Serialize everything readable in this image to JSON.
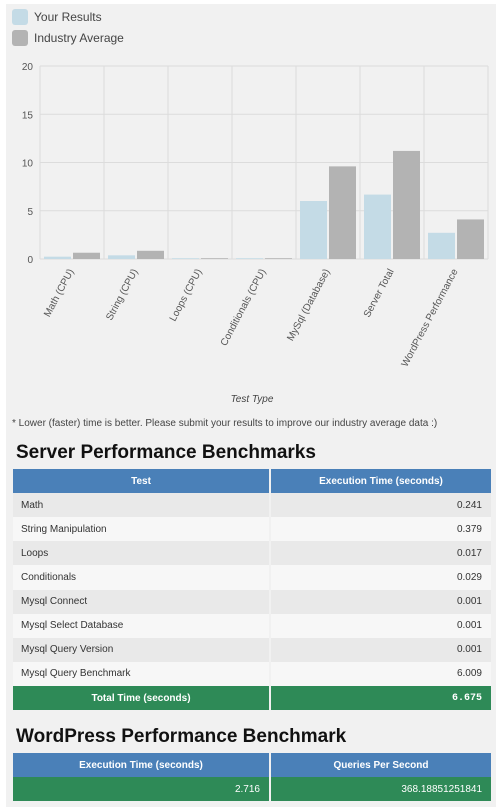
{
  "legend": [
    {
      "label": "Your Results",
      "color": "#c4dbe6"
    },
    {
      "label": "Industry Average",
      "color": "#b3b3b3"
    }
  ],
  "chart_data": {
    "type": "bar",
    "categories": [
      "Math (CPU)",
      "String (CPU)",
      "Loops (CPU)",
      "Conditionals (CPU)",
      "MySql (Database)",
      "Server Total",
      "WordPress Performance"
    ],
    "series": [
      {
        "name": "Your Results",
        "color": "#c4dbe6",
        "values": [
          0.241,
          0.379,
          0.017,
          0.029,
          6.009,
          6.675,
          2.716
        ]
      },
      {
        "name": "Industry Average",
        "color": "#b3b3b3",
        "values": [
          0.65,
          0.85,
          0.04,
          0.06,
          9.6,
          11.2,
          4.1
        ]
      }
    ],
    "yticks": [
      0,
      5,
      10,
      15,
      20
    ],
    "ylim": [
      0,
      20
    ],
    "xlabel": "Test Type",
    "grid": true,
    "legend_position": "top-left"
  },
  "note": "* Lower (faster) time is better. Please submit your results to improve our industry average data :)",
  "server": {
    "title": "Server Performance Benchmarks",
    "headers": [
      "Test",
      "Execution Time (seconds)"
    ],
    "rows": [
      {
        "test": "Math",
        "time": "0.241"
      },
      {
        "test": "String Manipulation",
        "time": "0.379"
      },
      {
        "test": "Loops",
        "time": "0.017"
      },
      {
        "test": "Conditionals",
        "time": "0.029"
      },
      {
        "test": "Mysql Connect",
        "time": "0.001"
      },
      {
        "test": "Mysql Select Database",
        "time": "0.001"
      },
      {
        "test": "Mysql Query Version",
        "time": "0.001"
      },
      {
        "test": "Mysql Query Benchmark",
        "time": "6.009"
      }
    ],
    "total_label": "Total Time (seconds)",
    "total_value": "6.675"
  },
  "wordpress": {
    "title": "WordPress Performance Benchmark",
    "headers": [
      "Execution Time (seconds)",
      "Queries Per Second"
    ],
    "execution_time": "2.716",
    "queries_per_second": "368.18851251841"
  },
  "colors": {
    "header_blue": "#4a80b8",
    "total_green": "#2e8a57",
    "panel_bg": "#f1f1f1"
  }
}
